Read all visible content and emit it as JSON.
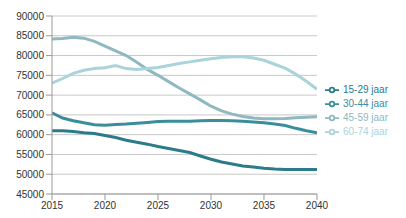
{
  "chart_data": {
    "type": "line",
    "x": [
      2015,
      2016,
      2017,
      2018,
      2019,
      2020,
      2021,
      2022,
      2023,
      2024,
      2025,
      2026,
      2027,
      2028,
      2029,
      2030,
      2031,
      2032,
      2033,
      2034,
      2035,
      2036,
      2037,
      2038,
      2039,
      2040
    ],
    "series": [
      {
        "name": "15-29 jaar",
        "color": "#2b7b8b",
        "values": [
          61000,
          61000,
          60800,
          60500,
          60300,
          59800,
          59300,
          58600,
          58100,
          57600,
          57000,
          56500,
          56000,
          55500,
          54600,
          53800,
          53100,
          52600,
          52100,
          51800,
          51500,
          51300,
          51200,
          51200,
          51200,
          51200
        ]
      },
      {
        "name": "30-44 jaar",
        "color": "#3a8e9c",
        "values": [
          65500,
          64200,
          63500,
          63000,
          62500,
          62400,
          62600,
          62700,
          62900,
          63100,
          63300,
          63400,
          63400,
          63400,
          63500,
          63600,
          63600,
          63500,
          63400,
          63200,
          63000,
          62700,
          62300,
          61600,
          61000,
          60500
        ]
      },
      {
        "name": "45-59 jaar",
        "color": "#8fb8c0",
        "values": [
          84200,
          84300,
          84600,
          84400,
          83600,
          82400,
          81200,
          80000,
          78300,
          76500,
          75000,
          73400,
          71800,
          70300,
          68800,
          67200,
          66000,
          65200,
          64600,
          64200,
          64000,
          64000,
          64100,
          64300,
          64400,
          64500
        ]
      },
      {
        "name": "60-74 jaar",
        "color": "#aad3dc",
        "values": [
          73000,
          74200,
          75500,
          76300,
          76700,
          76900,
          77500,
          76700,
          76500,
          76700,
          77000,
          77500,
          78000,
          78400,
          78800,
          79200,
          79500,
          79700,
          79700,
          79400,
          78800,
          77800,
          76800,
          75300,
          73500,
          71500
        ]
      }
    ],
    "xlim": [
      2015,
      2040
    ],
    "xticks": [
      2015,
      2020,
      2025,
      2030,
      2035,
      2040
    ],
    "ylim": [
      45000,
      90000
    ],
    "yticks": [
      45000,
      50000,
      55000,
      60000,
      65000,
      70000,
      75000,
      80000,
      85000,
      90000
    ],
    "grid": true,
    "legend": "right",
    "marker": "none",
    "line_style": "solid"
  }
}
